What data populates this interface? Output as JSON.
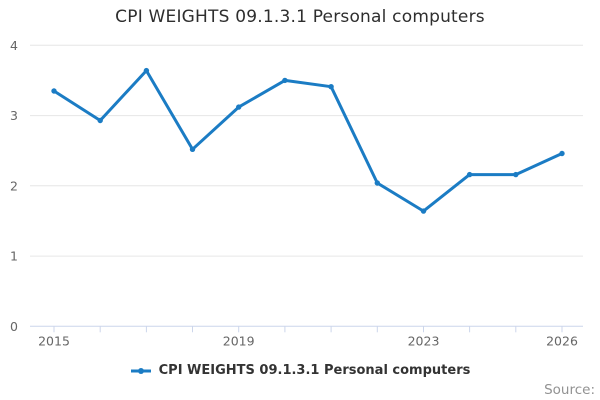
{
  "title": "CPI WEIGHTS 09.1.3.1 Personal computers",
  "legend": {
    "label": "CPI WEIGHTS 09.1.3.1 Personal computers"
  },
  "source_label": "Source:",
  "colors": {
    "line": "#1b7cc4",
    "grid": "#e6e6e6",
    "axis": "#ccd6eb",
    "tick_label": "#666666",
    "title_text": "#2e2e2e",
    "legend_text": "#333333",
    "source_text": "#929292"
  },
  "chart_data": {
    "type": "line",
    "title": "CPI WEIGHTS 09.1.3.1 Personal computers",
    "xlabel": "",
    "ylabel": "",
    "x": [
      2015,
      2016,
      2017,
      2018,
      2019,
      2020,
      2021,
      2022,
      2023,
      2024,
      2025,
      2026
    ],
    "series": [
      {
        "name": "CPI WEIGHTS 09.1.3.1 Personal computers",
        "values": [
          3.35,
          2.93,
          3.64,
          2.52,
          3.12,
          3.5,
          3.41,
          2.04,
          1.64,
          2.16,
          2.16,
          2.46
        ]
      }
    ],
    "ylim": [
      0,
      4
    ],
    "yticks": [
      0,
      1,
      2,
      3,
      4
    ],
    "xticks_labeled": [
      2015,
      2019,
      2023,
      2026
    ],
    "grid": true,
    "legend_position": "bottom",
    "marker": "circle"
  }
}
